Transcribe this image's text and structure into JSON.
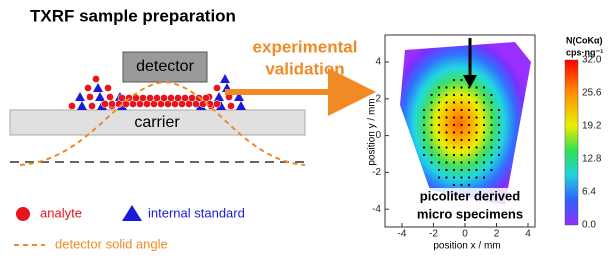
{
  "title": "TXRF sample preparation",
  "diagram": {
    "detector": "detector",
    "carrier": "carrier"
  },
  "legend": {
    "analyte": "analyte",
    "internal_standard": "internal standard",
    "solid_angle": "detector solid angle"
  },
  "annotation": {
    "line1": "experimental",
    "line2": "validation"
  },
  "plot": {
    "xticks": [
      "-4",
      "-2",
      "0",
      "2",
      "4"
    ],
    "yticks": [
      "4",
      "2",
      "0",
      "-2",
      "-4"
    ],
    "xlabel": "position x / mm",
    "ylabel": "position y / mm",
    "specimen_label": [
      "picoliter derived",
      "micro specimens"
    ],
    "colorbar": {
      "title": [
        "N(CoKα)",
        "cps·ng⁻¹"
      ],
      "ticks": [
        "32.0",
        "25.6",
        "19.2",
        "12.8",
        "6.4",
        "0.0"
      ]
    }
  }
}
